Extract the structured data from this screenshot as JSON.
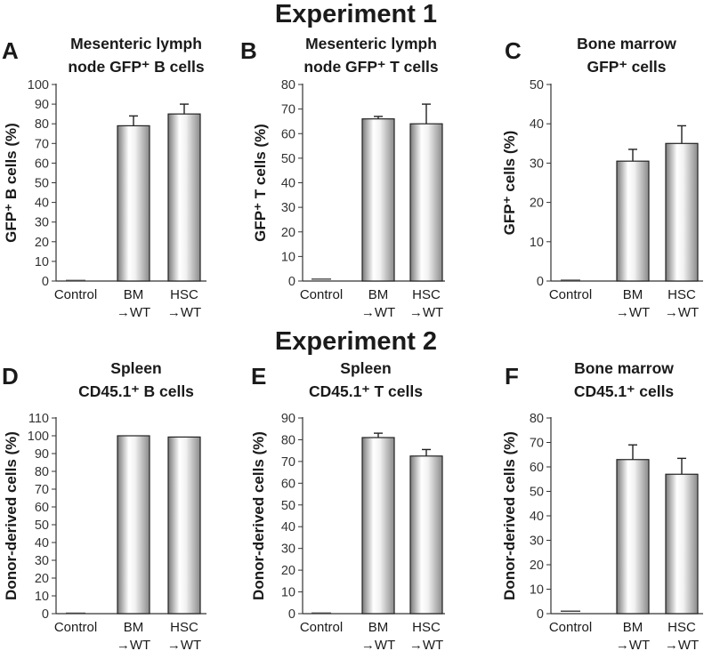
{
  "experiments": [
    {
      "title": "Experiment 1"
    },
    {
      "title": "Experiment 2"
    }
  ],
  "chart_data": [
    {
      "type": "bar",
      "panel": "A",
      "title": [
        "Mesenteric lymph",
        "node GFP⁺ B cells"
      ],
      "ylabel": "GFP⁺ B cells (%)",
      "categories": [
        [
          "Control"
        ],
        [
          "BM",
          "→WT"
        ],
        [
          "HSC",
          "→WT"
        ]
      ],
      "values": [
        0.3,
        79,
        85
      ],
      "errors": [
        0,
        5,
        5
      ],
      "ylim": [
        0,
        100
      ],
      "yticks": [
        0,
        10,
        20,
        30,
        40,
        50,
        60,
        70,
        80,
        90,
        100
      ]
    },
    {
      "type": "bar",
      "panel": "B",
      "title": [
        "Mesenteric lymph",
        "node GFP⁺ T cells"
      ],
      "ylabel": "GFP⁺ T cells (%)",
      "categories": [
        [
          "Control"
        ],
        [
          "BM",
          "→WT"
        ],
        [
          "HSC",
          "→WT"
        ]
      ],
      "values": [
        0.8,
        66,
        64
      ],
      "errors": [
        0,
        1,
        8
      ],
      "ylim": [
        0,
        80
      ],
      "yticks": [
        0,
        10,
        20,
        30,
        40,
        50,
        60,
        70,
        80
      ]
    },
    {
      "type": "bar",
      "panel": "C",
      "title": [
        "Bone marrow",
        "GFP⁺ cells"
      ],
      "ylabel": "GFP⁺ cells (%)",
      "categories": [
        [
          "Control"
        ],
        [
          "BM",
          "→WT"
        ],
        [
          "HSC",
          "→WT"
        ]
      ],
      "values": [
        0.2,
        30.5,
        35
      ],
      "errors": [
        0,
        3,
        4.5
      ],
      "ylim": [
        0,
        50
      ],
      "yticks": [
        0,
        10,
        20,
        30,
        40,
        50
      ]
    },
    {
      "type": "bar",
      "panel": "D",
      "title": [
        "Spleen",
        "CD45.1⁺ B cells"
      ],
      "ylabel": "Donor-derived cells (%)",
      "categories": [
        [
          "Control"
        ],
        [
          "BM",
          "→WT"
        ],
        [
          "HSC",
          "→WT"
        ]
      ],
      "values": [
        0,
        100,
        99.3
      ],
      "errors": [
        0,
        0,
        0
      ],
      "ylim": [
        0,
        110
      ],
      "yticks": [
        0,
        10,
        20,
        30,
        40,
        50,
        60,
        70,
        80,
        90,
        100,
        110
      ]
    },
    {
      "type": "bar",
      "panel": "E",
      "title": [
        "Spleen",
        "CD45.1⁺ T cells"
      ],
      "ylabel": "Donor-derived cells (%)",
      "categories": [
        [
          "Control"
        ],
        [
          "BM",
          "→WT"
        ],
        [
          "HSC",
          "→WT"
        ]
      ],
      "values": [
        0.3,
        81,
        72.5
      ],
      "errors": [
        0,
        2,
        3
      ],
      "ylim": [
        0,
        90
      ],
      "yticks": [
        0,
        10,
        20,
        30,
        40,
        50,
        60,
        70,
        80,
        90
      ]
    },
    {
      "type": "bar",
      "panel": "F",
      "title": [
        "Bone marrow",
        "CD45.1⁺ cells"
      ],
      "ylabel": "Donor-derived cells (%)",
      "categories": [
        [
          "Control"
        ],
        [
          "BM",
          "→WT"
        ],
        [
          "HSC",
          "→WT"
        ]
      ],
      "values": [
        1,
        63,
        57
      ],
      "errors": [
        0,
        6,
        6.5
      ],
      "ylim": [
        0,
        80
      ],
      "yticks": [
        0,
        10,
        20,
        30,
        40,
        50,
        60,
        70,
        80
      ]
    }
  ]
}
